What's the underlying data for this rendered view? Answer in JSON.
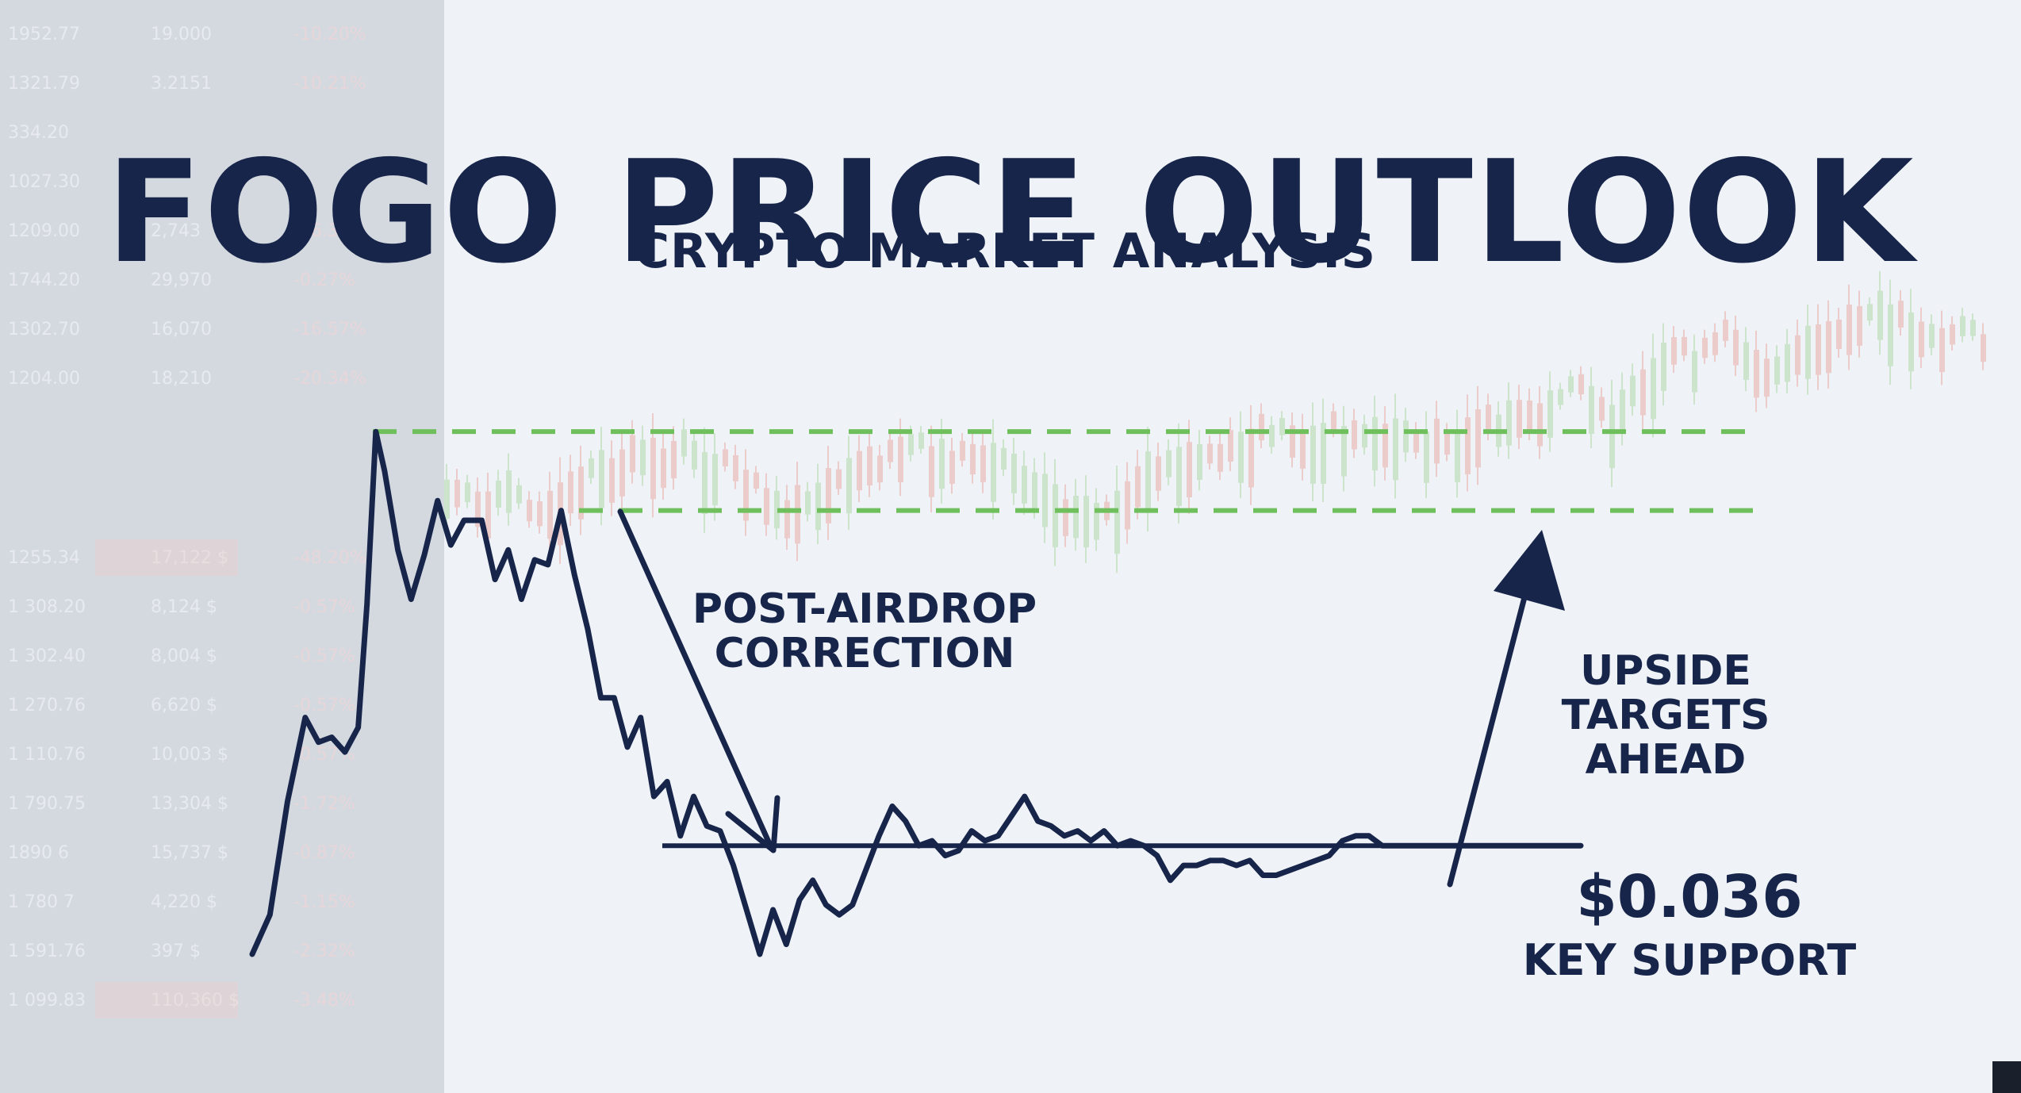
{
  "title": "FOGO PRICE OUTLOOK",
  "subtitle": "CRYPTO MARKET ANALYSIS",
  "annotations": {
    "correction_line1": "POST-AIRDROP",
    "correction_line2": "CORRECTION",
    "upside_line1": "UPSIDE",
    "upside_line2": "TARGETS",
    "upside_line3": "AHEAD",
    "support_price": "$0.036",
    "support_label": "KEY SUPPORT"
  },
  "colors": {
    "ink": "#17254a",
    "target_dash": "#6fbf5c",
    "candle_up": "#6fbf5c",
    "candle_down": "#e06a5a",
    "background": "#eef1f5"
  },
  "background_table": {
    "col1": [
      "1952.77",
      "1321.79",
      "334.20",
      "1027.30",
      "1209.00",
      "1744.20",
      "1302.70",
      "1204.00",
      "",
      "",
      "1255.34",
      "1 308.20",
      "1 302.40",
      "1 270.76",
      "1 110.76",
      "1 790.75",
      "1890 6",
      "1 780 7",
      "1 591.76",
      "1 099.83"
    ],
    "col2": [
      "19.000",
      "3.2151",
      "",
      "",
      "2,743",
      "29,970",
      "16,070",
      "18,210",
      "",
      "",
      "17,122 $",
      "8,124 $",
      "8,004 $",
      "6,620 $",
      "10,003 $",
      "13,304 $",
      "15,737 $",
      "4,220 $",
      "397 $",
      "110,360 $"
    ],
    "col3": [
      "-10.20%",
      "-10.21%",
      "",
      "",
      "-16.35%",
      "-0.27%",
      "-16.57%",
      "-20.34%",
      "",
      "",
      "-48.20%",
      "-0.57%",
      "-0.57%",
      "-0.57%",
      "-0.57%",
      "-1.72%",
      "-0.87%",
      "-1.15%",
      "-2.32%",
      "-3.48%"
    ]
  },
  "chart_data": {
    "type": "line",
    "title": "FOGO PRICE OUTLOOK",
    "subtitle": "CRYPTO MARKET ANALYSIS",
    "xlabel": "",
    "ylabel": "",
    "x": [
      0,
      4,
      8,
      12,
      15,
      18,
      21,
      24,
      26,
      28,
      30,
      33,
      36,
      39,
      42,
      45,
      48,
      52,
      55,
      58,
      61,
      64,
      67,
      70,
      73,
      76,
      79,
      82,
      85,
      88,
      91,
      94,
      97,
      100,
      103,
      106,
      109,
      112,
      115,
      118,
      121,
      124,
      127,
      130,
      133,
      136,
      139,
      142,
      145,
      148,
      151,
      154,
      157,
      160,
      163,
      166,
      169,
      172,
      175,
      178,
      181,
      184,
      187,
      190,
      193,
      196,
      199,
      202,
      205,
      208,
      211,
      214,
      217,
      220,
      223,
      226,
      229,
      232,
      235,
      238,
      241,
      244,
      247,
      250,
      253,
      256,
      259,
      262,
      265,
      268,
      271,
      274,
      277,
      280,
      283,
      286,
      289,
      292,
      295,
      298,
      301
    ],
    "series": [
      {
        "values": [
          0.014,
          0.022,
          0.045,
          0.062,
          0.057,
          0.058,
          0.055,
          0.06,
          0.085,
          0.12,
          0.112,
          0.096,
          0.086,
          0.095,
          0.106,
          0.097,
          0.102,
          0.102,
          0.09,
          0.096,
          0.086,
          0.094,
          0.093,
          0.104,
          0.091,
          0.08,
          0.066,
          0.066,
          0.056,
          0.062,
          0.046,
          0.049,
          0.038,
          0.046,
          0.04,
          0.039,
          0.032,
          0.023,
          0.014,
          0.023,
          0.016,
          0.025,
          0.029,
          0.024,
          0.022,
          0.024,
          0.031,
          0.038,
          0.044,
          0.041,
          0.036,
          0.037,
          0.034,
          0.035,
          0.039,
          0.037,
          0.038,
          0.042,
          0.046,
          0.041,
          0.04,
          0.038,
          0.039,
          0.037,
          0.039,
          0.036,
          0.037,
          0.036,
          0.034,
          0.029,
          0.032,
          0.032,
          0.033,
          0.033,
          0.032,
          0.033,
          0.03,
          0.03,
          0.031,
          0.032,
          0.033,
          0.034,
          0.037,
          0.038,
          0.038,
          0.036,
          0.036,
          0.036,
          0.036,
          0.036,
          0.036,
          0.036,
          0.036,
          0.036,
          0.036,
          0.036,
          0.036,
          0.036,
          0.036,
          0.036,
          0.036
        ]
      }
    ],
    "support_level": 0.036,
    "target_levels": [
      0.12,
      0.104
    ],
    "ylim": [
      0.0,
      0.13
    ],
    "xlim": [
      0,
      340
    ],
    "grid": false,
    "legend": "none"
  }
}
